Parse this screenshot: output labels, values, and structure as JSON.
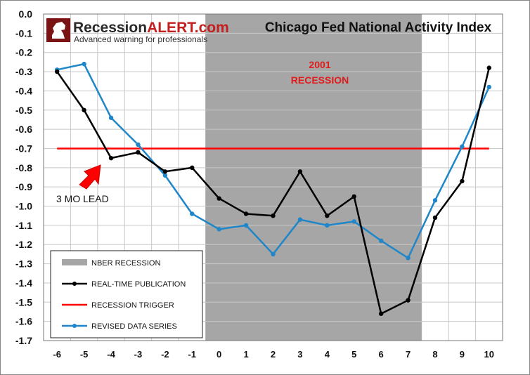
{
  "logo": {
    "brand_prefix": "Recession",
    "brand_suffix": "ALERT.com",
    "tagline": "Advanced warning for professionals"
  },
  "chart_data": {
    "type": "line",
    "title": "Chicago Fed National Activity Index",
    "xlabel": "",
    "ylabel": "",
    "x": [
      -6,
      -5,
      -4,
      -3,
      -2,
      -1,
      0,
      1,
      2,
      3,
      4,
      5,
      6,
      7,
      8,
      9,
      10
    ],
    "xlim": [
      -6.5,
      10.5
    ],
    "ylim": [
      -1.7,
      0.0
    ],
    "y_ticks": [
      "0.0",
      "-0.1",
      "-0.2",
      "-0.3",
      "-0.4",
      "-0.5",
      "-0.6",
      "-0.7",
      "-0.8",
      "-0.9",
      "-1.0",
      "-1.1",
      "-1.2",
      "-1.3",
      "-1.4",
      "-1.5",
      "-1.6",
      "-1.7"
    ],
    "x_ticks": [
      "-6",
      "-5",
      "-4",
      "-3",
      "-2",
      "-1",
      "0",
      "1",
      "2",
      "3",
      "4",
      "5",
      "6",
      "7",
      "8",
      "9",
      "10"
    ],
    "grid": true,
    "recession_shading": {
      "label": "NBER RECESSION",
      "from": -0.5,
      "to": 7.5,
      "color": "#a6a6a6"
    },
    "trigger": {
      "label": "RECESSION TRIGGER",
      "value": -0.7,
      "from": -6,
      "to": 10,
      "color": "#ff0000"
    },
    "series": [
      {
        "name": "REAL-TIME PUBLICATION",
        "color": "#000000",
        "values": [
          -0.3,
          -0.5,
          -0.75,
          -0.72,
          -0.82,
          -0.8,
          -0.96,
          -1.04,
          -1.05,
          -0.82,
          -1.05,
          -0.95,
          -1.56,
          -1.49,
          -1.06,
          -0.87,
          -0.28
        ]
      },
      {
        "name": "REVISED DATA SERIES",
        "color": "#1f86c9",
        "values": [
          -0.29,
          -0.26,
          -0.54,
          -0.68,
          -0.84,
          -1.04,
          -1.12,
          -1.1,
          -1.25,
          -1.07,
          -1.1,
          -1.08,
          -1.18,
          -1.27,
          -0.97,
          -0.69,
          -0.38
        ]
      }
    ],
    "annotations": [
      {
        "text": "2001",
        "color": "#e01b1b"
      },
      {
        "text": "RECESSION",
        "color": "#e01b1b"
      },
      {
        "text": "3 MO LEAD",
        "color": "#111111"
      }
    ],
    "legend_position": "bottom-left"
  }
}
